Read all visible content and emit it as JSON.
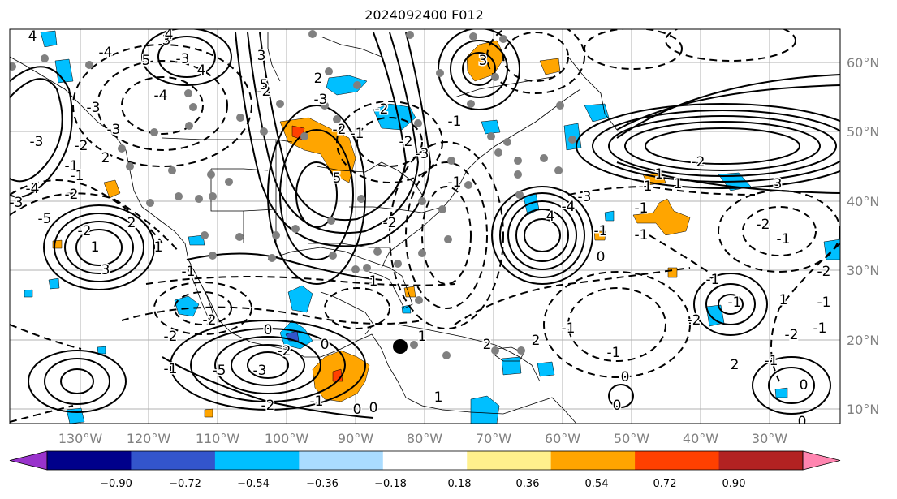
{
  "title": "2024092400 F012",
  "lon_labels": [
    "130°W",
    "120°W",
    "110°W",
    "100°W",
    "90°W",
    "80°W",
    "70°W",
    "60°W",
    "50°W",
    "40°W",
    "30°W"
  ],
  "lat_labels": [
    "60°N",
    "50°N",
    "40°N",
    "30°N",
    "20°N",
    "10°N"
  ],
  "colorbar": {
    "ticks": [
      "−0.90",
      "−0.72",
      "−0.54",
      "−0.36",
      "−0.18",
      "0.18",
      "0.36",
      "0.54",
      "0.72",
      "0.90"
    ],
    "colors": [
      "#9933cc",
      "#00008b",
      "#3355cc",
      "#00bfff",
      "#aadcff",
      "#ffffff",
      "#fff08c",
      "#ffa500",
      "#ff4000",
      "#b22222",
      "#ff85b0"
    ]
  },
  "contour_labels": [
    "4",
    "3",
    "5",
    "4",
    "3",
    "-2",
    "2",
    "-4",
    "-3",
    "-2",
    "-1",
    "5",
    "-3",
    "-2",
    "-1",
    "-2",
    "-1",
    "-2",
    "3",
    "5",
    "-3",
    "2",
    "-3",
    "-1",
    "4",
    "-4",
    "-3",
    "-4",
    "-3",
    "-5",
    "-2",
    "-2",
    "1",
    "3",
    "2",
    "1",
    "-1",
    "-2",
    "4",
    "-4",
    "-3",
    "-1",
    "0",
    "-1",
    "-2",
    "-1",
    "-1",
    "1",
    "1",
    "3",
    "-2",
    "-1",
    "-2",
    "-1",
    "1",
    "-1",
    "-1",
    "-2",
    "2",
    "-2",
    "-1",
    "-1",
    "0",
    "0",
    "0",
    "-1",
    "0",
    "-1",
    "2",
    "2",
    "1",
    "1",
    "0",
    "-2",
    "-1",
    "0",
    "-1",
    "-3",
    "-2",
    "1",
    "0",
    "0",
    "-2",
    "-3",
    "-5",
    "-1",
    "-2"
  ]
}
